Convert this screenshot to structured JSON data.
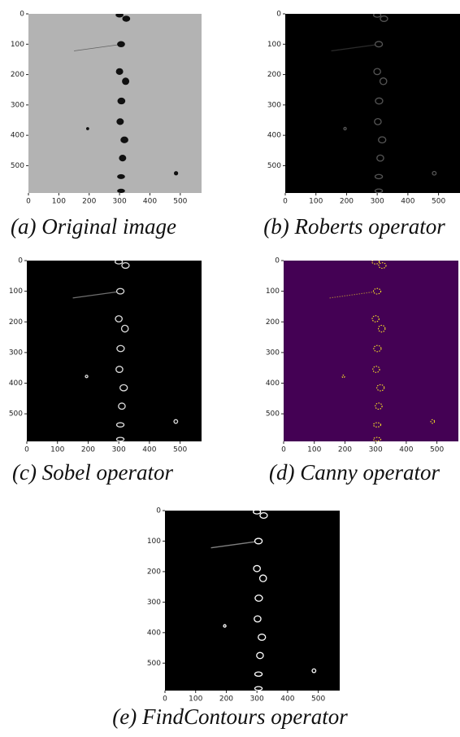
{
  "chart_data": [
    {
      "type": "image",
      "caption": "(a) Original image",
      "background": "#b3b3b3",
      "color": "#111111",
      "style": "filled",
      "xlim": [
        0,
        570
      ],
      "ylim": [
        590,
        0
      ],
      "xticks": [
        0,
        100,
        200,
        300,
        400,
        500
      ],
      "yticks": [
        0,
        100,
        200,
        300,
        400,
        500
      ]
    },
    {
      "type": "image",
      "caption": "(b) Roberts operator",
      "background": "#000000",
      "color": "#555555",
      "style": "outline",
      "xlim": [
        0,
        570
      ],
      "ylim": [
        590,
        0
      ],
      "xticks": [
        0,
        100,
        200,
        300,
        400,
        500
      ],
      "yticks": [
        0,
        100,
        200,
        300,
        400,
        500
      ]
    },
    {
      "type": "image",
      "caption": "(c) Sobel operator",
      "background": "#000000",
      "color": "#dddddd",
      "style": "outline",
      "xlim": [
        0,
        570
      ],
      "ylim": [
        590,
        0
      ],
      "xticks": [
        0,
        100,
        200,
        300,
        400,
        500
      ],
      "yticks": [
        0,
        100,
        200,
        300,
        400,
        500
      ]
    },
    {
      "type": "image",
      "caption": "(d) Canny operator",
      "background": "#440154",
      "color": "#fde725",
      "style": "dashed",
      "xlim": [
        0,
        570
      ],
      "ylim": [
        590,
        0
      ],
      "xticks": [
        0,
        100,
        200,
        300,
        400,
        500
      ],
      "yticks": [
        0,
        100,
        200,
        300,
        400,
        500
      ]
    },
    {
      "type": "image",
      "caption": "(e) FindContours operator",
      "background": "#000000",
      "color": "#ffffff",
      "style": "outline",
      "xlim": [
        0,
        570
      ],
      "ylim": [
        590,
        0
      ],
      "xticks": [
        0,
        100,
        200,
        300,
        400,
        500
      ],
      "yticks": [
        0,
        100,
        200,
        300,
        400,
        500
      ]
    }
  ]
}
